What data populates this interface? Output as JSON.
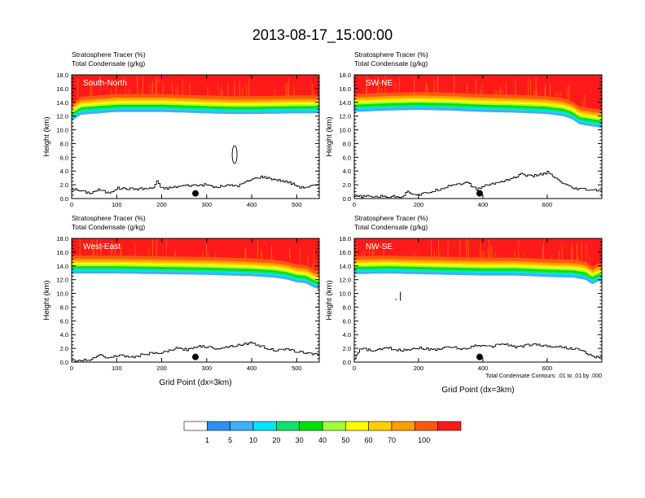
{
  "title": "2013-08-17_15:00:00",
  "footnote": "Total Condensate Contours: .01 to .01 by .000",
  "chart_data": [
    {
      "type": "heatmap",
      "panel_label": "South-North",
      "subtitle_line1": "Stratosphere Tracer   (%)",
      "subtitle_line2": "Total Condensate   (g/kg)",
      "ylabel": "Height (km)",
      "xlabel": "",
      "xlim": [
        0,
        550
      ],
      "ylim": [
        0,
        18
      ],
      "x_ticks": [
        0,
        100,
        200,
        300,
        400,
        500
      ],
      "y_ticks": [
        "0.0",
        "2.0",
        "4.0",
        "6.0",
        "8.0",
        "10.0",
        "12.0",
        "14.0",
        "16.0",
        "18.0"
      ],
      "tropopause_base_km": {
        "x": [
          0,
          20,
          100,
          200,
          300,
          350,
          400,
          500,
          550
        ],
        "y": [
          11.3,
          12.2,
          12.6,
          12.6,
          12.4,
          12.3,
          12.3,
          12.4,
          12.4
        ]
      },
      "terrain_km": {
        "x": [
          0,
          20,
          40,
          60,
          80,
          100,
          140,
          180,
          190,
          195,
          210,
          250,
          300,
          320,
          340,
          370,
          400,
          420,
          450,
          480,
          510,
          540,
          550
        ],
        "y": [
          1.4,
          1.1,
          0.8,
          1.3,
          0.8,
          1.5,
          1.4,
          1.5,
          2.8,
          1.5,
          1.5,
          1.9,
          2.0,
          1.6,
          1.9,
          1.9,
          2.8,
          3.2,
          2.8,
          2.4,
          1.6,
          1.9,
          1.9
        ]
      },
      "marker_x": 275,
      "condensate_contour_center": [
        362,
        6.4
      ]
    },
    {
      "type": "heatmap",
      "panel_label": "SW-NE",
      "subtitle_line1": "Stratosphere Tracer   (%)",
      "subtitle_line2": "Total Condensate   (g/kg)",
      "ylabel": "Height (km)",
      "xlabel": "",
      "xlim": [
        0,
        770
      ],
      "ylim": [
        0,
        18
      ],
      "x_ticks": [
        0,
        200,
        400,
        600
      ],
      "y_ticks": [
        "0.0",
        "2.0",
        "4.0",
        "6.0",
        "8.0",
        "10.0",
        "12.0",
        "14.0",
        "16.0",
        "18.0"
      ],
      "tropopause_base_km": {
        "x": [
          0,
          100,
          200,
          300,
          400,
          500,
          600,
          650,
          680,
          700,
          740,
          770
        ],
        "y": [
          12.6,
          12.8,
          12.9,
          12.8,
          12.6,
          12.5,
          12.3,
          12.0,
          11.5,
          10.8,
          10.5,
          10.3
        ]
      },
      "terrain_km": {
        "x": [
          0,
          50,
          100,
          150,
          160,
          200,
          260,
          300,
          350,
          380,
          400,
          450,
          500,
          520,
          550,
          600,
          640,
          680,
          700,
          740,
          770
        ],
        "y": [
          0.3,
          0.3,
          0.3,
          0.3,
          1.0,
          0.5,
          1.3,
          2.0,
          2.3,
          1.3,
          1.8,
          2.4,
          3.1,
          3.6,
          3.2,
          3.8,
          2.4,
          1.4,
          1.4,
          1.2,
          1.2
        ]
      },
      "marker_x": 390
    },
    {
      "type": "heatmap",
      "panel_label": "West-East",
      "subtitle_line1": "Stratosphere Tracer   (%)",
      "subtitle_line2": "Total Condensate   (g/kg)",
      "ylabel": "Height (km)",
      "xlabel": "Grid Point (dx=3km)",
      "xlim": [
        0,
        550
      ],
      "ylim": [
        0,
        18
      ],
      "x_ticks": [
        0,
        100,
        200,
        300,
        400,
        500
      ],
      "y_ticks": [
        "0.0",
        "2.0",
        "4.0",
        "6.0",
        "8.0",
        "10.0",
        "12.0",
        "14.0",
        "16.0",
        "18.0"
      ],
      "tropopause_base_km": {
        "x": [
          0,
          50,
          100,
          200,
          300,
          400,
          450,
          480,
          500,
          520,
          540,
          550
        ],
        "y": [
          12.9,
          12.9,
          12.9,
          12.8,
          12.7,
          12.5,
          12.3,
          12.0,
          11.6,
          11.5,
          10.8,
          10.6
        ]
      },
      "terrain_km": {
        "x": [
          0,
          40,
          60,
          80,
          100,
          140,
          160,
          200,
          230,
          260,
          280,
          320,
          350,
          400,
          420,
          450,
          480,
          520,
          550
        ],
        "y": [
          0.2,
          0.3,
          1.2,
          0.5,
          1.0,
          0.7,
          1.2,
          1.3,
          2.0,
          1.8,
          2.4,
          2.0,
          2.3,
          2.8,
          2.3,
          1.7,
          1.8,
          1.3,
          1.2
        ]
      },
      "marker_x": 275
    },
    {
      "type": "heatmap",
      "panel_label": "NW-SE",
      "subtitle_line1": "Stratosphere Tracer   (%)",
      "subtitle_line2": "Total Condensate   (g/kg)",
      "ylabel": "Height (km)",
      "xlabel": "Grid Point (dx=3km)",
      "xlim": [
        0,
        770
      ],
      "ylim": [
        0,
        18
      ],
      "x_ticks": [
        0,
        200,
        400,
        600
      ],
      "y_ticks": [
        "0.0",
        "2.0",
        "4.0",
        "6.0",
        "8.0",
        "10.0",
        "12.0",
        "14.0",
        "16.0",
        "18.0"
      ],
      "tropopause_base_km": {
        "x": [
          0,
          100,
          200,
          300,
          400,
          500,
          600,
          680,
          720,
          740,
          760,
          770
        ],
        "y": [
          12.8,
          12.9,
          12.8,
          12.7,
          12.6,
          12.6,
          12.4,
          12.3,
          12.0,
          11.3,
          11.8,
          11.6
        ]
      },
      "terrain_km": {
        "x": [
          0,
          20,
          60,
          100,
          140,
          200,
          240,
          300,
          340,
          380,
          420,
          460,
          500,
          560,
          600,
          640,
          700,
          740,
          770
        ],
        "y": [
          0.6,
          2.0,
          1.6,
          2.1,
          1.7,
          2.1,
          1.8,
          2.2,
          1.9,
          2.5,
          2.2,
          2.7,
          2.2,
          2.6,
          2.3,
          2.2,
          1.8,
          0.8,
          0.6
        ]
      },
      "marker_x": 390,
      "condensate_contour_center": [
        136,
        9.4
      ]
    }
  ],
  "colorbar": {
    "labels": [
      "1",
      "5",
      "10",
      "20",
      "30",
      "40",
      "50",
      "60",
      "70",
      "100"
    ],
    "colors": [
      "#ffffff",
      "#2f8ef0",
      "#40aef8",
      "#00e5ff",
      "#10e26a",
      "#00e000",
      "#a0ff3c",
      "#ffff00",
      "#ffce00",
      "#ff9e00",
      "#ff5a10",
      "#ff1a1a"
    ]
  }
}
